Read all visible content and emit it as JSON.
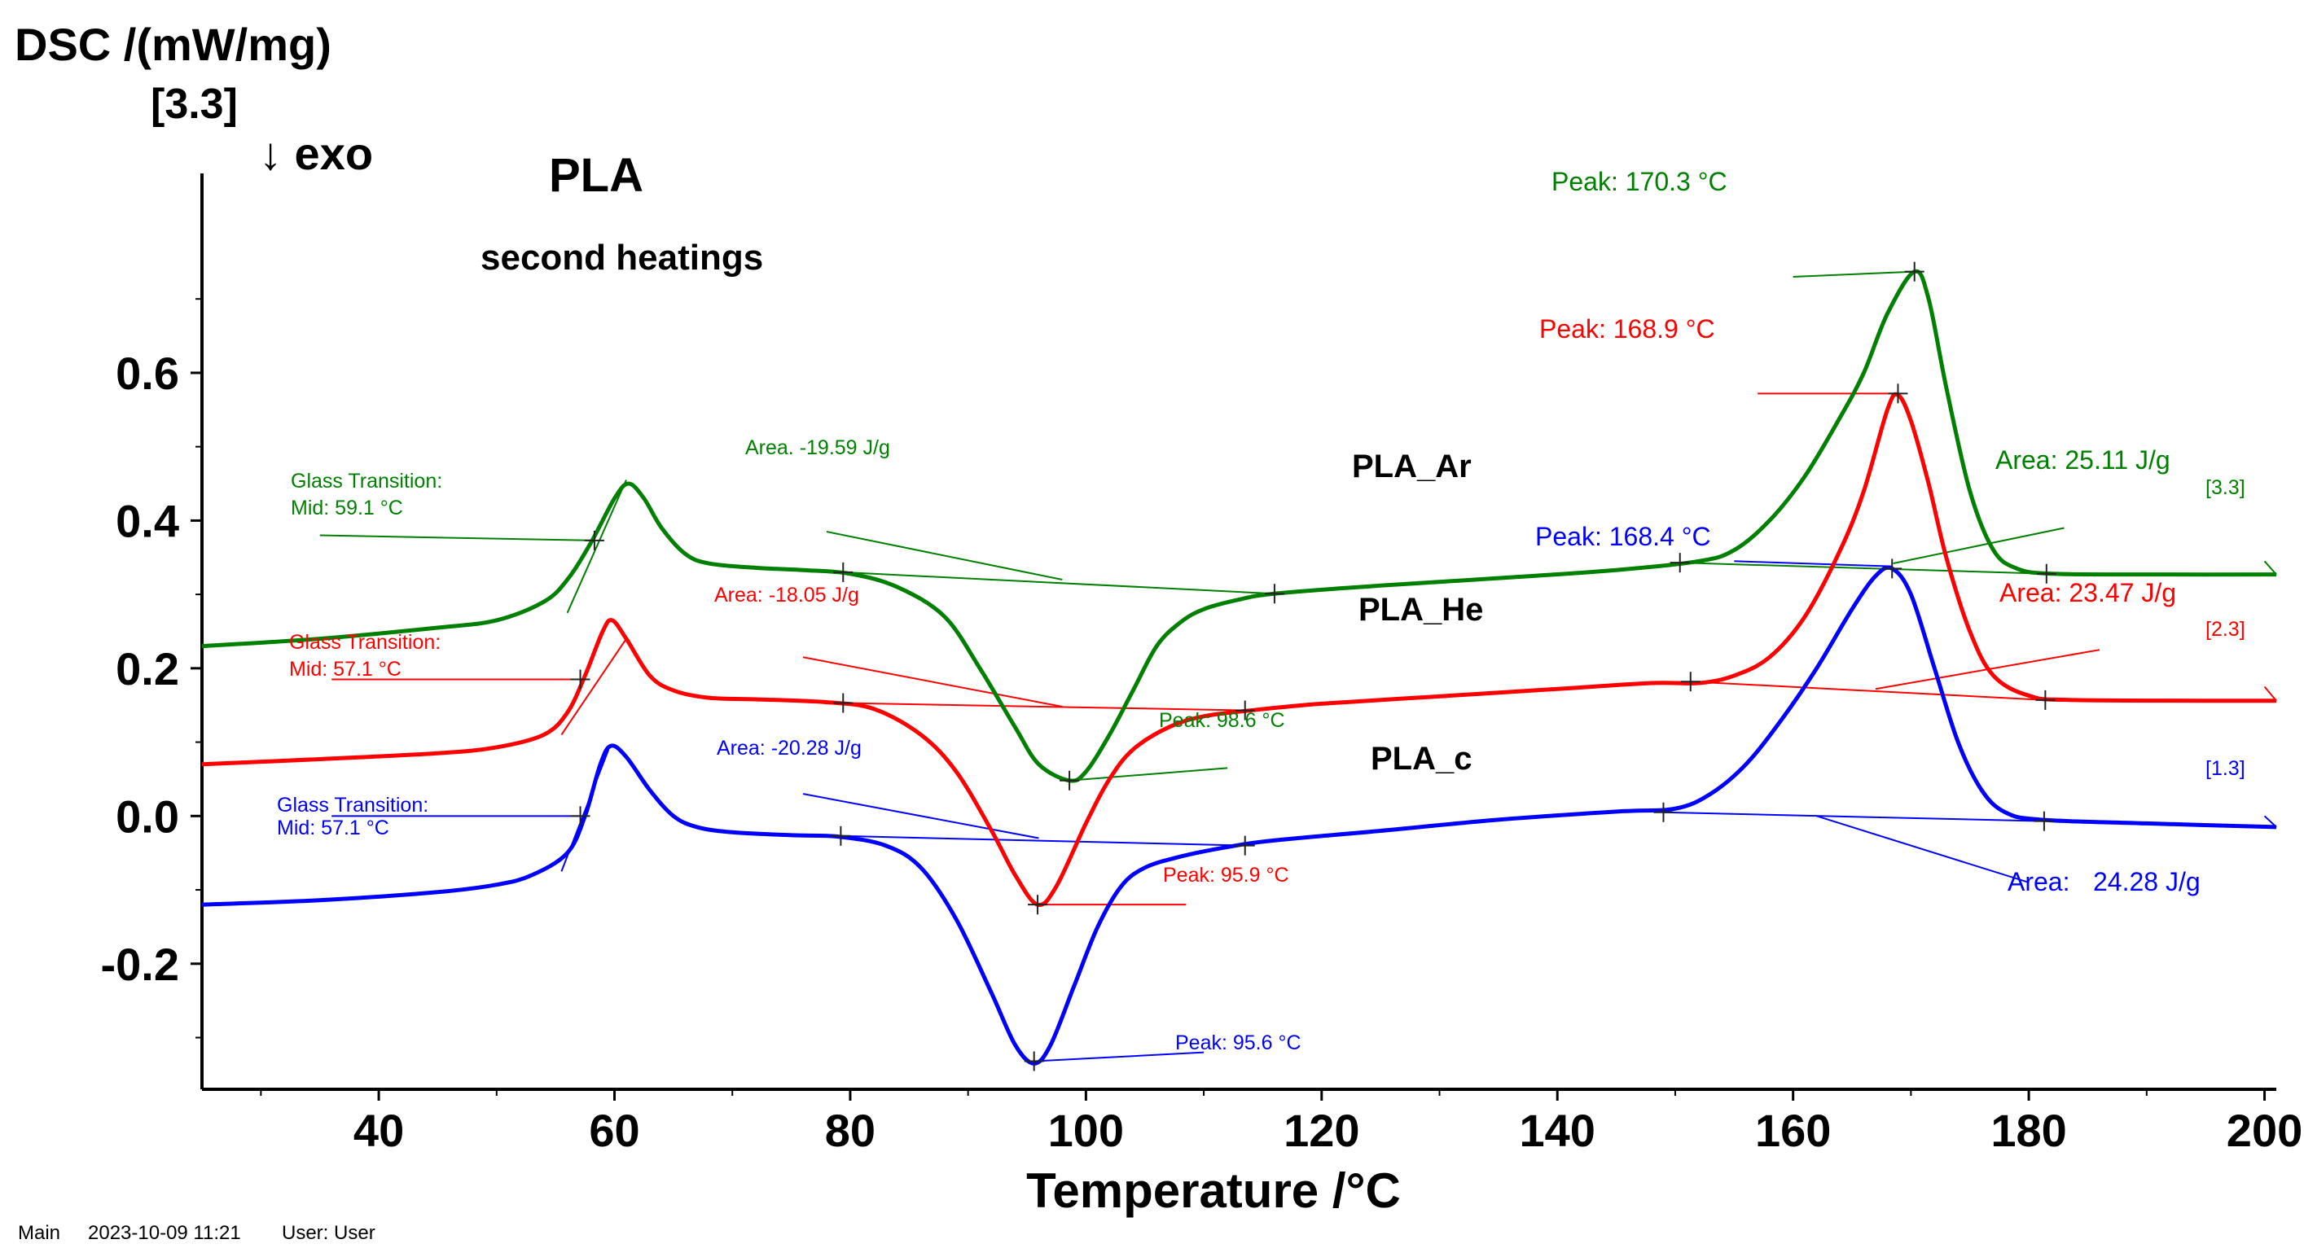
{
  "chart_data": {
    "type": "line",
    "title": "PLA",
    "subtitle": "second heatings",
    "ylabel": "DSC /(mW/mg)",
    "ylabel_scale": "[3.3]",
    "exo_direction": "↓ exo",
    "xlabel": "Temperature /°C",
    "xlim": [
      25,
      201
    ],
    "ylim": [
      -0.37,
      0.87
    ],
    "x_ticks": [
      {
        "v": 40,
        "label": "40"
      },
      {
        "v": 60,
        "label": "60"
      },
      {
        "v": 80,
        "label": "80"
      },
      {
        "v": 100,
        "label": "100"
      },
      {
        "v": 120,
        "label": "120"
      },
      {
        "v": 140,
        "label": "140"
      },
      {
        "v": 160,
        "label": "160"
      },
      {
        "v": 180,
        "label": "180"
      },
      {
        "v": 200,
        "label": "200"
      }
    ],
    "y_ticks": [
      {
        "v": 0.6,
        "label": "0.6"
      },
      {
        "v": 0.4,
        "label": "0.4"
      },
      {
        "v": 0.2,
        "label": "0.2"
      },
      {
        "v": 0.0,
        "label": "0.0"
      },
      {
        "v": -0.2,
        "label": "-0.2"
      }
    ],
    "series": [
      {
        "name": "PLA_Ar",
        "color": "#008000",
        "end_marker": "[3.3]",
        "points": [
          [
            25,
            0.23
          ],
          [
            35,
            0.24
          ],
          [
            45,
            0.255
          ],
          [
            50,
            0.265
          ],
          [
            54,
            0.29
          ],
          [
            56,
            0.32
          ],
          [
            58,
            0.37
          ],
          [
            60,
            0.43
          ],
          [
            61.2,
            0.45
          ],
          [
            62.5,
            0.43
          ],
          [
            64,
            0.39
          ],
          [
            66,
            0.355
          ],
          [
            68,
            0.342
          ],
          [
            72,
            0.336
          ],
          [
            76,
            0.333
          ],
          [
            80,
            0.328
          ],
          [
            84,
            0.31
          ],
          [
            88,
            0.27
          ],
          [
            91,
            0.2
          ],
          [
            94,
            0.12
          ],
          [
            96,
            0.07
          ],
          [
            98.6,
            0.048
          ],
          [
            100,
            0.06
          ],
          [
            102,
            0.11
          ],
          [
            104,
            0.17
          ],
          [
            106,
            0.23
          ],
          [
            108,
            0.262
          ],
          [
            110,
            0.28
          ],
          [
            113,
            0.293
          ],
          [
            116,
            0.301
          ],
          [
            125,
            0.312
          ],
          [
            135,
            0.322
          ],
          [
            145,
            0.333
          ],
          [
            152,
            0.345
          ],
          [
            155,
            0.36
          ],
          [
            158,
            0.4
          ],
          [
            161,
            0.46
          ],
          [
            164,
            0.54
          ],
          [
            166,
            0.6
          ],
          [
            168,
            0.68
          ],
          [
            170.3,
            0.737
          ],
          [
            171.5,
            0.7
          ],
          [
            173,
            0.58
          ],
          [
            175,
            0.44
          ],
          [
            177,
            0.36
          ],
          [
            179,
            0.335
          ],
          [
            182,
            0.328
          ],
          [
            190,
            0.327
          ],
          [
            201,
            0.327
          ]
        ],
        "annotations": {
          "glass_title": "Glass Transition:",
          "glass_mid": "Mid:  59.1 °C",
          "area1": "Area. -19.59 J/g",
          "peak1": "Peak: 98.6 °C",
          "area2": "Area: 25.11 J/g",
          "peak2": "Peak:  170.3 °C"
        }
      },
      {
        "name": "PLA_He",
        "color": "#ff0000",
        "end_marker": "[2.3]",
        "points": [
          [
            25,
            0.07
          ],
          [
            35,
            0.077
          ],
          [
            45,
            0.085
          ],
          [
            50,
            0.093
          ],
          [
            54,
            0.11
          ],
          [
            56,
            0.14
          ],
          [
            57.5,
            0.19
          ],
          [
            59,
            0.25
          ],
          [
            59.8,
            0.265
          ],
          [
            61,
            0.24
          ],
          [
            63,
            0.19
          ],
          [
            65,
            0.17
          ],
          [
            68,
            0.16
          ],
          [
            72,
            0.158
          ],
          [
            78,
            0.154
          ],
          [
            82,
            0.145
          ],
          [
            86,
            0.11
          ],
          [
            89,
            0.06
          ],
          [
            92,
            -0.02
          ],
          [
            94,
            -0.08
          ],
          [
            95.9,
            -0.12
          ],
          [
            97.5,
            -0.095
          ],
          [
            100,
            -0.01
          ],
          [
            102,
            0.05
          ],
          [
            104,
            0.09
          ],
          [
            107,
            0.12
          ],
          [
            110,
            0.135
          ],
          [
            114,
            0.143
          ],
          [
            120,
            0.152
          ],
          [
            130,
            0.162
          ],
          [
            140,
            0.172
          ],
          [
            148,
            0.18
          ],
          [
            152,
            0.18
          ],
          [
            155,
            0.19
          ],
          [
            158,
            0.215
          ],
          [
            161,
            0.27
          ],
          [
            164,
            0.36
          ],
          [
            166,
            0.44
          ],
          [
            168,
            0.55
          ],
          [
            168.9,
            0.57
          ],
          [
            170,
            0.535
          ],
          [
            171.5,
            0.45
          ],
          [
            173,
            0.35
          ],
          [
            175,
            0.25
          ],
          [
            177,
            0.19
          ],
          [
            180,
            0.163
          ],
          [
            184,
            0.157
          ],
          [
            201,
            0.156
          ]
        ],
        "annotations": {
          "glass_title": "Glass Transition:",
          "glass_mid": "Mid:  57.1 °C",
          "area1": "Area: -18.05 J/g",
          "peak1": "Peak: 95.9 °C",
          "area2": "Area: 23.47 J/g",
          "peak2": "Peak:  168.9 °C"
        }
      },
      {
        "name": "PLA_c",
        "color": "#0000ff",
        "end_marker": "[1.3]",
        "points": [
          [
            25,
            -0.12
          ],
          [
            35,
            -0.114
          ],
          [
            45,
            -0.103
          ],
          [
            50,
            -0.093
          ],
          [
            53,
            -0.08
          ],
          [
            56,
            -0.05
          ],
          [
            57.5,
            0.0
          ],
          [
            58.8,
            0.07
          ],
          [
            59.7,
            0.095
          ],
          [
            61,
            0.08
          ],
          [
            63,
            0.035
          ],
          [
            65,
            0.0
          ],
          [
            67,
            -0.015
          ],
          [
            70,
            -0.022
          ],
          [
            75,
            -0.026
          ],
          [
            79,
            -0.028
          ],
          [
            83,
            -0.04
          ],
          [
            86,
            -0.07
          ],
          [
            89,
            -0.14
          ],
          [
            92,
            -0.24
          ],
          [
            94,
            -0.31
          ],
          [
            95.6,
            -0.335
          ],
          [
            97,
            -0.31
          ],
          [
            99,
            -0.23
          ],
          [
            101,
            -0.15
          ],
          [
            103,
            -0.095
          ],
          [
            105,
            -0.07
          ],
          [
            108,
            -0.055
          ],
          [
            112,
            -0.042
          ],
          [
            116,
            -0.033
          ],
          [
            125,
            -0.02
          ],
          [
            135,
            -0.005
          ],
          [
            145,
            0.006
          ],
          [
            150,
            0.01
          ],
          [
            153,
            0.03
          ],
          [
            156,
            0.07
          ],
          [
            159,
            0.13
          ],
          [
            162,
            0.2
          ],
          [
            165,
            0.28
          ],
          [
            167,
            0.325
          ],
          [
            168.4,
            0.335
          ],
          [
            170,
            0.3
          ],
          [
            172,
            0.2
          ],
          [
            174,
            0.1
          ],
          [
            176,
            0.035
          ],
          [
            178,
            0.005
          ],
          [
            181,
            -0.005
          ],
          [
            190,
            -0.01
          ],
          [
            201,
            -0.015
          ]
        ],
        "annotations": {
          "glass_title": "Glass Transition:",
          "glass_mid": "Mid:  57.1 °C",
          "area1": "Area: -20.28 J/g",
          "peak1": "Peak: 95.6 °C",
          "area2": "24.28 J/g",
          "area2_prefix": "Area:",
          "peak2": "Peak:  168.4 °C"
        }
      }
    ]
  },
  "footer": {
    "window": "Main",
    "timestamp": "2023-10-09 11:21",
    "user": "User: User"
  }
}
